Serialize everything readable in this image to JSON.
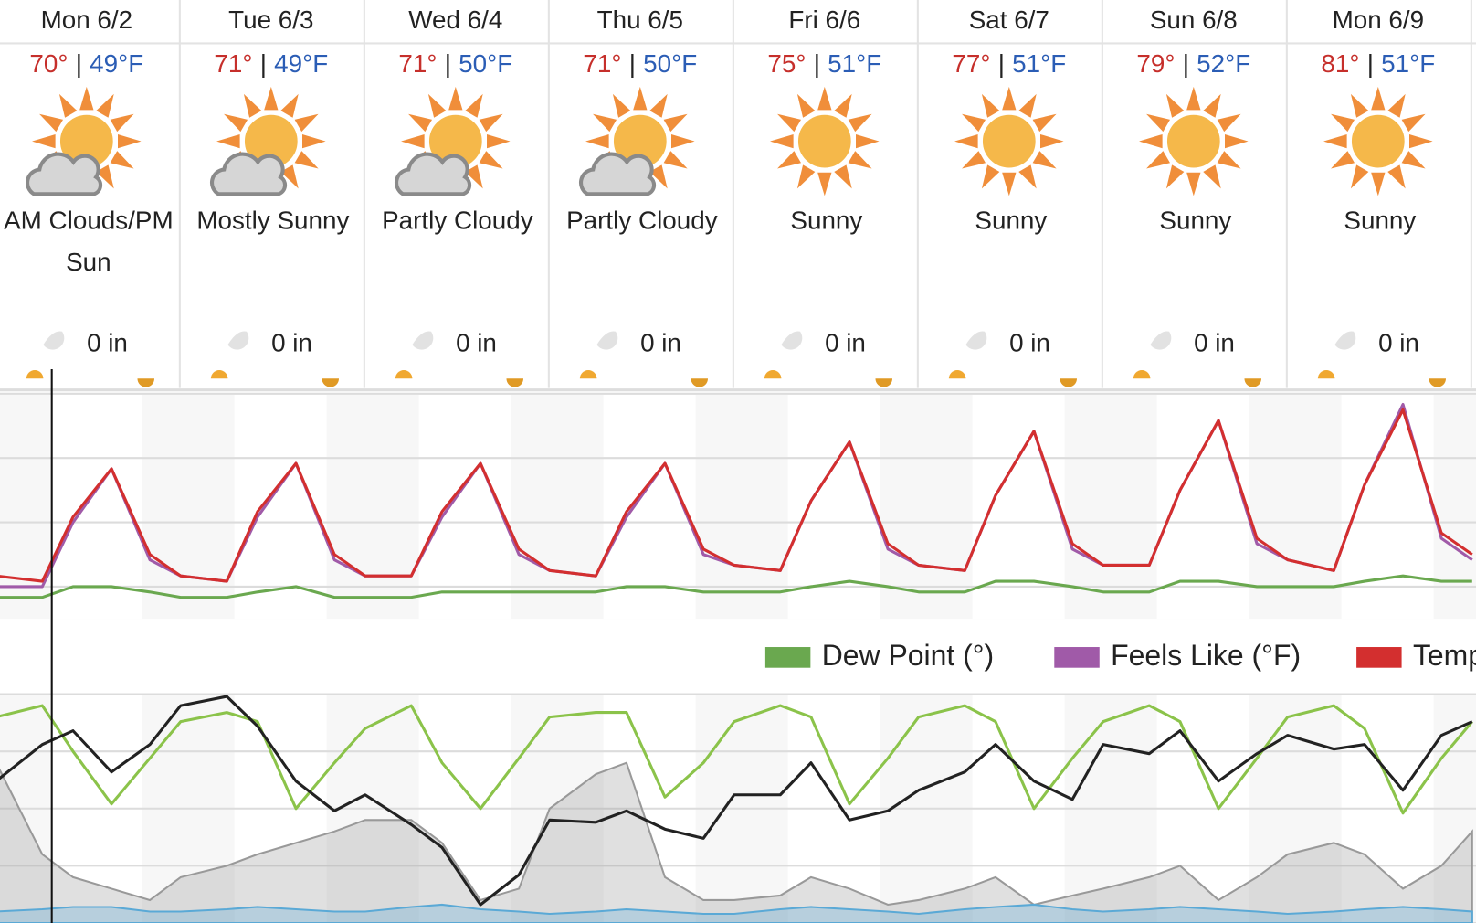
{
  "days": [
    {
      "label": "Mon 6/2",
      "high": "70°",
      "low": "49°F",
      "condition": "AM Clouds/PM Sun",
      "precip": "0 in"
    },
    {
      "label": "Tue 6/3",
      "high": "71°",
      "low": "49°F",
      "condition": "Mostly Sunny",
      "precip": "0 in"
    },
    {
      "label": "Wed 6/4",
      "high": "71°",
      "low": "50°F",
      "condition": "Partly Cloudy",
      "precip": "0 in"
    },
    {
      "label": "Thu 6/5",
      "high": "71°",
      "low": "50°F",
      "condition": "Partly Cloudy",
      "precip": "0 in"
    },
    {
      "label": "Fri 6/6",
      "high": "75°",
      "low": "51°F",
      "condition": "Sunny",
      "precip": "0 in"
    },
    {
      "label": "Sat 6/7",
      "high": "77°",
      "low": "51°F",
      "condition": "Sunny",
      "precip": "0 in"
    },
    {
      "label": "Sun 6/8",
      "high": "79°",
      "low": "52°F",
      "condition": "Sunny",
      "precip": "0 in"
    },
    {
      "label": "Mon 6/9",
      "high": "81°",
      "low": "51°F",
      "condition": "Sunny",
      "precip": "0 in"
    }
  ],
  "separator": "|",
  "chart_data": [
    {
      "type": "line",
      "x": [
        0,
        6,
        10,
        15,
        20,
        24,
        30,
        34,
        39,
        44,
        48,
        54,
        58,
        63,
        68,
        72,
        78,
        82,
        87,
        92,
        96,
        102,
        106,
        111,
        116,
        120,
        126,
        130,
        135,
        140,
        144,
        150,
        154,
        159,
        164,
        168,
        174,
        178,
        183,
        188,
        192
      ],
      "xlim": [
        0.5,
        192.5
      ],
      "ylim": [
        42,
        84
      ],
      "yticks": [
        48,
        60,
        72,
        84
      ],
      "grid": true,
      "series": [
        {
          "name": "Dew Point (°)",
          "color": "#6aa84f",
          "values": [
            46,
            46,
            48,
            48,
            47,
            46,
            46,
            47,
            48,
            46,
            46,
            46,
            47,
            47,
            47,
            47,
            47,
            48,
            48,
            47,
            47,
            47,
            48,
            49,
            48,
            47,
            47,
            49,
            49,
            48,
            47,
            47,
            49,
            49,
            48,
            48,
            48,
            49,
            50,
            49,
            49
          ]
        },
        {
          "name": "Feels Like (°F)",
          "color": "#a05aa8",
          "values": [
            48,
            48,
            60,
            70,
            53,
            50,
            49,
            61,
            71,
            53,
            50,
            50,
            61,
            71,
            54,
            51,
            50,
            61,
            71,
            54,
            52,
            51,
            64,
            75,
            55,
            52,
            51,
            65,
            77,
            55,
            52,
            52,
            66,
            79,
            56,
            53,
            51,
            67,
            82,
            57,
            53
          ]
        },
        {
          "name": "Temperature (°F)",
          "color": "#d32f2f",
          "values": [
            50,
            49,
            61,
            70,
            54,
            50,
            49,
            62,
            71,
            54,
            50,
            50,
            62,
            71,
            55,
            51,
            50,
            62,
            71,
            55,
            52,
            51,
            64,
            75,
            56,
            52,
            51,
            65,
            77,
            56,
            52,
            52,
            66,
            79,
            57,
            53,
            51,
            67,
            81,
            58,
            54
          ]
        }
      ]
    },
    {
      "type": "line",
      "x": [
        0,
        6,
        10,
        15,
        20,
        24,
        30,
        34,
        39,
        44,
        48,
        54,
        58,
        63,
        68,
        72,
        78,
        82,
        87,
        92,
        96,
        102,
        106,
        111,
        116,
        120,
        126,
        130,
        135,
        140,
        144,
        150,
        154,
        159,
        164,
        168,
        174,
        178,
        183,
        188,
        192
      ],
      "xlim": [
        0.5,
        192.5
      ],
      "ylim": [
        0,
        100
      ],
      "yticks": [
        0,
        25,
        50,
        75,
        100
      ],
      "grid": true,
      "series": [
        {
          "color": "#999999",
          "area": true,
          "values": [
            70,
            30,
            20,
            15,
            10,
            20,
            25,
            30,
            35,
            40,
            45,
            45,
            35,
            10,
            15,
            50,
            65,
            70,
            20,
            10,
            10,
            12,
            20,
            15,
            8,
            10,
            15,
            20,
            8,
            12,
            15,
            20,
            25,
            10,
            20,
            30,
            35,
            30,
            15,
            25,
            40
          ]
        },
        {
          "color": "#5aa9d6",
          "area": true,
          "values": [
            5,
            6,
            7,
            7,
            5,
            5,
            6,
            7,
            6,
            5,
            5,
            7,
            8,
            6,
            5,
            4,
            5,
            6,
            5,
            4,
            4,
            6,
            7,
            6,
            5,
            4,
            6,
            7,
            8,
            6,
            5,
            6,
            7,
            6,
            5,
            4,
            5,
            6,
            7,
            6,
            5
          ]
        },
        {
          "color": "#8bc34a",
          "area": false,
          "values": [
            90,
            95,
            75,
            52,
            72,
            88,
            92,
            88,
            50,
            70,
            85,
            95,
            70,
            50,
            72,
            90,
            92,
            92,
            55,
            70,
            88,
            95,
            90,
            52,
            72,
            90,
            95,
            88,
            50,
            72,
            88,
            95,
            88,
            50,
            72,
            90,
            95,
            85,
            48,
            72,
            88
          ]
        },
        {
          "color": "#222222",
          "area": false,
          "values": [
            62,
            78,
            84,
            66,
            78,
            95,
            99,
            86,
            62,
            49,
            56,
            43,
            33,
            8,
            21,
            45,
            44,
            49,
            41,
            37,
            56,
            56,
            70,
            45,
            49,
            58,
            66,
            78,
            62,
            54,
            78,
            74,
            84,
            62,
            74,
            82,
            76,
            78,
            58,
            82,
            88
          ]
        }
      ]
    }
  ]
}
